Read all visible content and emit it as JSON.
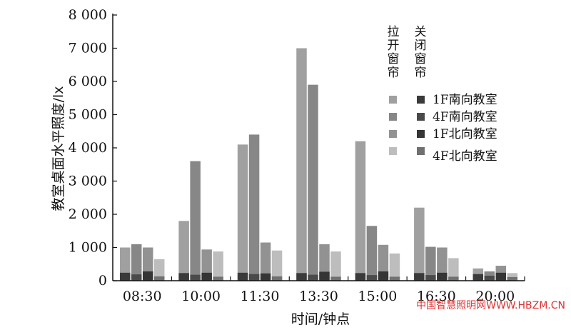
{
  "chart_data": {
    "type": "bar",
    "xlabel": "时间/钟点",
    "ylabel": "教室桌面水平照度/lx",
    "ylim": [
      0,
      8000
    ],
    "y_ticks": [
      0,
      1000,
      2000,
      3000,
      4000,
      5000,
      6000,
      7000,
      8000
    ],
    "y_tick_labels": [
      "0",
      "1 000",
      "2 000",
      "3 000",
      "4 000",
      "5 000",
      "6 000",
      "7 000",
      "8 000"
    ],
    "categories": [
      "08:30",
      "10:00",
      "11:30",
      "13:30",
      "15:00",
      "16:30",
      "20:00"
    ],
    "grid": false,
    "legend_position": "top-right",
    "legend_groups": [
      "拉开窗帘",
      "关闭窗帘"
    ],
    "series": [
      {
        "name": "1F南向教室",
        "group": "拉开窗帘",
        "values": [
          1000,
          1800,
          4100,
          7000,
          4200,
          2200,
          370
        ]
      },
      {
        "name": "4F南向教室",
        "group": "拉开窗帘",
        "values": [
          1100,
          3600,
          4400,
          5900,
          1650,
          1020,
          280
        ]
      },
      {
        "name": "1F北向教室",
        "group": "拉开窗帘",
        "values": [
          1000,
          940,
          1150,
          1100,
          1080,
          1000,
          450
        ]
      },
      {
        "name": "4F北向教室",
        "group": "拉开窗帘",
        "values": [
          650,
          880,
          910,
          880,
          820,
          680,
          230
        ]
      },
      {
        "name": "1F南向教室",
        "group": "关闭窗帘",
        "values": [
          240,
          230,
          240,
          230,
          230,
          230,
          200
        ]
      },
      {
        "name": "4F南向教室",
        "group": "关闭窗帘",
        "values": [
          190,
          180,
          200,
          180,
          170,
          170,
          150
        ]
      },
      {
        "name": "1F北向教室",
        "group": "关闭窗帘",
        "values": [
          280,
          240,
          220,
          270,
          280,
          240,
          240
        ]
      },
      {
        "name": "4F北向教室",
        "group": "关闭窗帘",
        "values": [
          130,
          120,
          130,
          120,
          120,
          120,
          110
        ]
      }
    ],
    "colors": {
      "open": [
        "#a0a0a0",
        "#878787",
        "#929292",
        "#bdbdbd"
      ],
      "closed": [
        "#3a3a3a",
        "#4a4a4a",
        "#353535",
        "#707070"
      ]
    }
  },
  "legend_headers": {
    "open": [
      "拉",
      "开",
      "窗",
      "帘"
    ],
    "closed": [
      "关",
      "闭",
      "窗",
      "帘"
    ]
  },
  "legend_labels": [
    "1F南向教室",
    "4F南向教室",
    "1F北向教室",
    "4F北向教室"
  ],
  "watermark": "中国智慧照明网WWW.HBZM.CN"
}
